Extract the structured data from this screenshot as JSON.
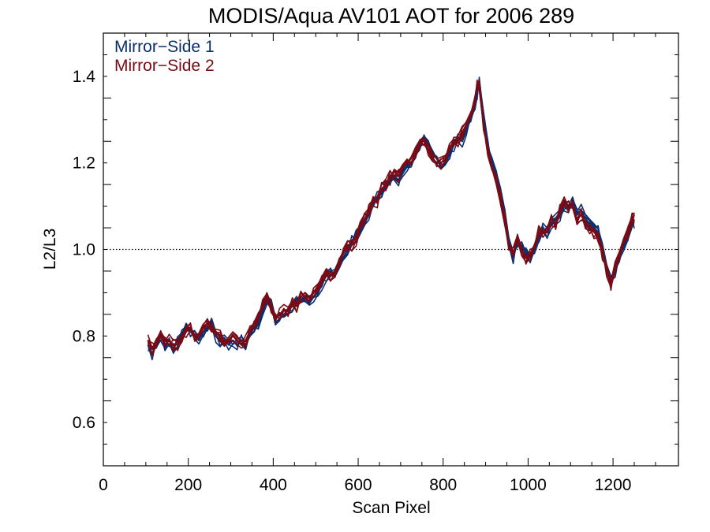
{
  "chart_data": {
    "type": "line",
    "title": "MODIS/Aqua AV101 AOT for 2006 289",
    "xlabel": "Scan Pixel",
    "ylabel": "L2/L3",
    "xlim": [
      0,
      1354
    ],
    "ylim": [
      0.5,
      1.5
    ],
    "xticks": [
      0,
      200,
      400,
      600,
      800,
      1000,
      1200
    ],
    "yticks": [
      0.6,
      0.8,
      1.0,
      1.2,
      1.4
    ],
    "xtick_labels": [
      "0",
      "200",
      "400",
      "600",
      "800",
      "1000",
      "1200"
    ],
    "ytick_labels": [
      "0.6",
      "0.8",
      "1.0",
      "1.2",
      "1.4"
    ],
    "reference_line": {
      "y": 1.0,
      "style": "dotted"
    },
    "legend_position": "top-left",
    "legend": [
      {
        "label": "Mirror−Side 1",
        "color": "#0b2f6e"
      },
      {
        "label": "Mirror−Side 2",
        "color": "#7a0a14"
      }
    ],
    "x": [
      105,
      115,
      125,
      135,
      145,
      155,
      165,
      175,
      185,
      195,
      205,
      215,
      225,
      235,
      245,
      255,
      265,
      275,
      285,
      295,
      305,
      315,
      325,
      335,
      345,
      355,
      365,
      375,
      385,
      395,
      405,
      415,
      425,
      435,
      445,
      455,
      465,
      475,
      485,
      495,
      505,
      515,
      525,
      535,
      545,
      555,
      565,
      575,
      585,
      595,
      605,
      615,
      625,
      635,
      645,
      655,
      665,
      675,
      685,
      695,
      705,
      715,
      725,
      735,
      745,
      755,
      765,
      775,
      785,
      795,
      805,
      815,
      825,
      835,
      845,
      855,
      865,
      875,
      880,
      885,
      895,
      905,
      915,
      925,
      935,
      945,
      955,
      965,
      975,
      985,
      995,
      1005,
      1015,
      1025,
      1035,
      1045,
      1055,
      1065,
      1075,
      1085,
      1095,
      1105,
      1115,
      1125,
      1135,
      1145,
      1155,
      1165,
      1175,
      1185,
      1195,
      1205,
      1215,
      1225,
      1235,
      1245,
      1250
    ],
    "series": [
      {
        "group": "Mirror-Side 1",
        "color": "#0b2f6e",
        "values": [
          0.78,
          0.76,
          0.78,
          0.8,
          0.78,
          0.79,
          0.77,
          0.79,
          0.8,
          0.82,
          0.81,
          0.8,
          0.79,
          0.81,
          0.82,
          0.83,
          0.8,
          0.79,
          0.79,
          0.78,
          0.79,
          0.78,
          0.79,
          0.78,
          0.8,
          0.81,
          0.83,
          0.86,
          0.88,
          0.87,
          0.83,
          0.84,
          0.85,
          0.86,
          0.87,
          0.88,
          0.88,
          0.89,
          0.88,
          0.89,
          0.9,
          0.92,
          0.94,
          0.95,
          0.94,
          0.96,
          0.98,
          1.0,
          1.02,
          1.03,
          1.04,
          1.06,
          1.08,
          1.1,
          1.12,
          1.13,
          1.15,
          1.16,
          1.17,
          1.16,
          1.18,
          1.19,
          1.2,
          1.22,
          1.24,
          1.26,
          1.24,
          1.22,
          1.21,
          1.19,
          1.2,
          1.22,
          1.24,
          1.26,
          1.25,
          1.28,
          1.3,
          1.33,
          1.36,
          1.39,
          1.31,
          1.24,
          1.2,
          1.17,
          1.13,
          1.08,
          1.02,
          0.98,
          1.02,
          1.01,
          0.99,
          0.98,
          1.0,
          1.03,
          1.05,
          1.04,
          1.06,
          1.07,
          1.08,
          1.1,
          1.09,
          1.11,
          1.08,
          1.09,
          1.07,
          1.06,
          1.05,
          1.04,
          1.0,
          0.96,
          0.93,
          0.95,
          0.98,
          1.01,
          1.03,
          1.06,
          1.06
        ]
      },
      {
        "group": "Mirror-Side 2",
        "color": "#7a0a14",
        "values": [
          0.79,
          0.77,
          0.79,
          0.81,
          0.79,
          0.79,
          0.78,
          0.78,
          0.79,
          0.81,
          0.82,
          0.8,
          0.8,
          0.82,
          0.83,
          0.82,
          0.81,
          0.8,
          0.78,
          0.79,
          0.8,
          0.79,
          0.78,
          0.79,
          0.81,
          0.82,
          0.84,
          0.87,
          0.89,
          0.86,
          0.84,
          0.85,
          0.86,
          0.86,
          0.88,
          0.87,
          0.89,
          0.9,
          0.89,
          0.9,
          0.91,
          0.93,
          0.95,
          0.94,
          0.95,
          0.97,
          0.99,
          1.01,
          1.01,
          1.02,
          1.05,
          1.07,
          1.09,
          1.11,
          1.11,
          1.14,
          1.15,
          1.17,
          1.18,
          1.17,
          1.19,
          1.2,
          1.21,
          1.23,
          1.25,
          1.25,
          1.23,
          1.21,
          1.2,
          1.2,
          1.21,
          1.23,
          1.25,
          1.25,
          1.27,
          1.29,
          1.31,
          1.35,
          1.38,
          1.38,
          1.29,
          1.23,
          1.19,
          1.16,
          1.12,
          1.07,
          1.0,
          0.99,
          1.03,
          1.0,
          0.98,
          0.99,
          1.01,
          1.04,
          1.04,
          1.05,
          1.07,
          1.06,
          1.09,
          1.11,
          1.1,
          1.1,
          1.07,
          1.08,
          1.06,
          1.05,
          1.04,
          1.03,
          0.99,
          0.95,
          0.92,
          0.96,
          0.99,
          1.02,
          1.04,
          1.07,
          1.08
        ]
      }
    ]
  }
}
